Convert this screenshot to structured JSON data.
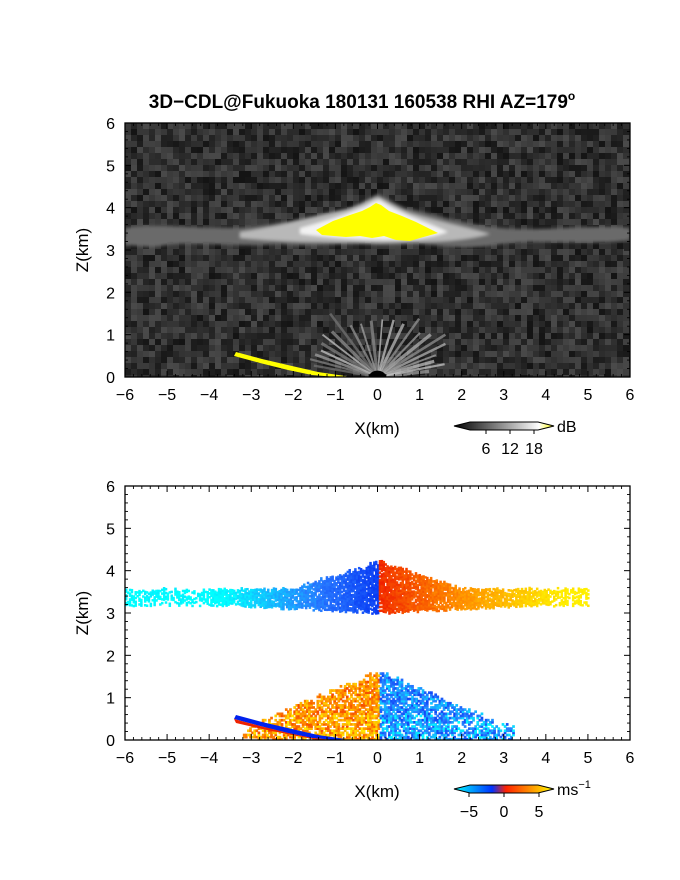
{
  "figure": {
    "title": "3D−CDL@Fukuoka 180131 160538 RHI AZ=179",
    "title_superscript": "o"
  },
  "chart_data": [
    {
      "type": "heatmap",
      "panel": "reflectivity",
      "xlabel": "X(km)",
      "ylabel": "Z(km)",
      "xlim": [
        -6,
        6
      ],
      "ylim": [
        0,
        6
      ],
      "x_ticks": [
        -6,
        -5,
        -4,
        -3,
        -2,
        -1,
        0,
        1,
        2,
        3,
        4,
        5,
        6
      ],
      "y_ticks": [
        0,
        1,
        2,
        3,
        4,
        5,
        6
      ],
      "colorbar": {
        "unit": "dB",
        "ticks": [
          "6",
          "12",
          "18"
        ],
        "range": [
          0,
          21
        ],
        "colors": [
          "#000000",
          "#ffffff",
          "#ffff00"
        ]
      },
      "features": {
        "noise_background": "dark gray speckle over full domain",
        "cloud_layer": {
          "z_range_km": [
            3.1,
            3.7
          ],
          "x_range_km": [
            -6,
            6
          ]
        },
        "saturated_core": {
          "x_range_km": [
            -1.3,
            1.4
          ],
          "z_range_km": [
            3.3,
            4.0
          ],
          "color": "#ffff00"
        },
        "ground_clutter_fan": {
          "origin_km": [
            0,
            0
          ],
          "max_range_km": 2.6,
          "max_height_km": 1.5
        },
        "yellow_ground_streak": {
          "x_range_km": [
            -3.3,
            -0.6
          ],
          "z_range_km": [
            0.05,
            0.55
          ]
        }
      }
    },
    {
      "type": "heatmap",
      "panel": "doppler_velocity",
      "xlabel": "X(km)",
      "ylabel": "Z(km)",
      "xlim": [
        -6,
        6
      ],
      "ylim": [
        0,
        6
      ],
      "x_ticks": [
        -6,
        -5,
        -4,
        -3,
        -2,
        -1,
        0,
        1,
        2,
        3,
        4,
        5,
        6
      ],
      "y_ticks": [
        0,
        1,
        2,
        3,
        4,
        5,
        6
      ],
      "colorbar": {
        "unit": "ms",
        "unit_superscript": "−1",
        "ticks": [
          "−5",
          "0",
          "5"
        ],
        "range": [
          -6,
          6
        ],
        "colors": [
          "#00ffff",
          "#0033ff",
          "#ff2200",
          "#ffff00"
        ]
      },
      "features": {
        "cloud_layer": {
          "x_range_km": [
            -6,
            5
          ],
          "z_range_km": [
            3.0,
            4.2
          ],
          "velocity_left_ms": -6,
          "velocity_right_ms": 6
        },
        "low_fan": {
          "x_range_km": [
            -3.5,
            3.2
          ],
          "z_range_km": [
            0,
            1.6
          ],
          "left_sign": "positive",
          "right_sign": "negative"
        }
      }
    }
  ]
}
